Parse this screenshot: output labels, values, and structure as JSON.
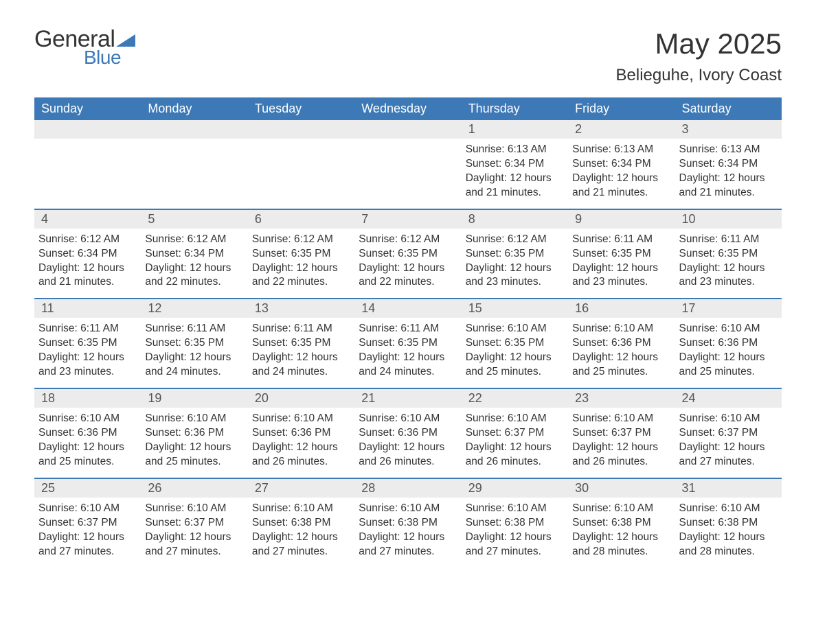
{
  "logo": {
    "text1": "General",
    "text2": "Blue"
  },
  "title": "May 2025",
  "location": "Belieguhe, Ivory Coast",
  "colors": {
    "header_bg": "#3d78b7",
    "header_text": "#ffffff",
    "daynum_bg": "#ececec",
    "daynum_text": "#555555",
    "body_text": "#333333",
    "page_bg": "#ffffff",
    "rule": "#3d78b7",
    "logo_blue": "#3d78b7"
  },
  "fonts": {
    "title_size_pt": 42,
    "location_size_pt": 24,
    "dow_size_pt": 18,
    "daynum_size_pt": 18,
    "body_size_pt": 15.5,
    "family": "Arial"
  },
  "daysOfWeek": [
    "Sunday",
    "Monday",
    "Tuesday",
    "Wednesday",
    "Thursday",
    "Friday",
    "Saturday"
  ],
  "weeks": [
    [
      {
        "n": "",
        "sr": "",
        "ss": "",
        "dl": ""
      },
      {
        "n": "",
        "sr": "",
        "ss": "",
        "dl": ""
      },
      {
        "n": "",
        "sr": "",
        "ss": "",
        "dl": ""
      },
      {
        "n": "",
        "sr": "",
        "ss": "",
        "dl": ""
      },
      {
        "n": "1",
        "sr": "Sunrise: 6:13 AM",
        "ss": "Sunset: 6:34 PM",
        "dl": "Daylight: 12 hours and 21 minutes."
      },
      {
        "n": "2",
        "sr": "Sunrise: 6:13 AM",
        "ss": "Sunset: 6:34 PM",
        "dl": "Daylight: 12 hours and 21 minutes."
      },
      {
        "n": "3",
        "sr": "Sunrise: 6:13 AM",
        "ss": "Sunset: 6:34 PM",
        "dl": "Daylight: 12 hours and 21 minutes."
      }
    ],
    [
      {
        "n": "4",
        "sr": "Sunrise: 6:12 AM",
        "ss": "Sunset: 6:34 PM",
        "dl": "Daylight: 12 hours and 21 minutes."
      },
      {
        "n": "5",
        "sr": "Sunrise: 6:12 AM",
        "ss": "Sunset: 6:34 PM",
        "dl": "Daylight: 12 hours and 22 minutes."
      },
      {
        "n": "6",
        "sr": "Sunrise: 6:12 AM",
        "ss": "Sunset: 6:35 PM",
        "dl": "Daylight: 12 hours and 22 minutes."
      },
      {
        "n": "7",
        "sr": "Sunrise: 6:12 AM",
        "ss": "Sunset: 6:35 PM",
        "dl": "Daylight: 12 hours and 22 minutes."
      },
      {
        "n": "8",
        "sr": "Sunrise: 6:12 AM",
        "ss": "Sunset: 6:35 PM",
        "dl": "Daylight: 12 hours and 23 minutes."
      },
      {
        "n": "9",
        "sr": "Sunrise: 6:11 AM",
        "ss": "Sunset: 6:35 PM",
        "dl": "Daylight: 12 hours and 23 minutes."
      },
      {
        "n": "10",
        "sr": "Sunrise: 6:11 AM",
        "ss": "Sunset: 6:35 PM",
        "dl": "Daylight: 12 hours and 23 minutes."
      }
    ],
    [
      {
        "n": "11",
        "sr": "Sunrise: 6:11 AM",
        "ss": "Sunset: 6:35 PM",
        "dl": "Daylight: 12 hours and 23 minutes."
      },
      {
        "n": "12",
        "sr": "Sunrise: 6:11 AM",
        "ss": "Sunset: 6:35 PM",
        "dl": "Daylight: 12 hours and 24 minutes."
      },
      {
        "n": "13",
        "sr": "Sunrise: 6:11 AM",
        "ss": "Sunset: 6:35 PM",
        "dl": "Daylight: 12 hours and 24 minutes."
      },
      {
        "n": "14",
        "sr": "Sunrise: 6:11 AM",
        "ss": "Sunset: 6:35 PM",
        "dl": "Daylight: 12 hours and 24 minutes."
      },
      {
        "n": "15",
        "sr": "Sunrise: 6:10 AM",
        "ss": "Sunset: 6:35 PM",
        "dl": "Daylight: 12 hours and 25 minutes."
      },
      {
        "n": "16",
        "sr": "Sunrise: 6:10 AM",
        "ss": "Sunset: 6:36 PM",
        "dl": "Daylight: 12 hours and 25 minutes."
      },
      {
        "n": "17",
        "sr": "Sunrise: 6:10 AM",
        "ss": "Sunset: 6:36 PM",
        "dl": "Daylight: 12 hours and 25 minutes."
      }
    ],
    [
      {
        "n": "18",
        "sr": "Sunrise: 6:10 AM",
        "ss": "Sunset: 6:36 PM",
        "dl": "Daylight: 12 hours and 25 minutes."
      },
      {
        "n": "19",
        "sr": "Sunrise: 6:10 AM",
        "ss": "Sunset: 6:36 PM",
        "dl": "Daylight: 12 hours and 25 minutes."
      },
      {
        "n": "20",
        "sr": "Sunrise: 6:10 AM",
        "ss": "Sunset: 6:36 PM",
        "dl": "Daylight: 12 hours and 26 minutes."
      },
      {
        "n": "21",
        "sr": "Sunrise: 6:10 AM",
        "ss": "Sunset: 6:36 PM",
        "dl": "Daylight: 12 hours and 26 minutes."
      },
      {
        "n": "22",
        "sr": "Sunrise: 6:10 AM",
        "ss": "Sunset: 6:37 PM",
        "dl": "Daylight: 12 hours and 26 minutes."
      },
      {
        "n": "23",
        "sr": "Sunrise: 6:10 AM",
        "ss": "Sunset: 6:37 PM",
        "dl": "Daylight: 12 hours and 26 minutes."
      },
      {
        "n": "24",
        "sr": "Sunrise: 6:10 AM",
        "ss": "Sunset: 6:37 PM",
        "dl": "Daylight: 12 hours and 27 minutes."
      }
    ],
    [
      {
        "n": "25",
        "sr": "Sunrise: 6:10 AM",
        "ss": "Sunset: 6:37 PM",
        "dl": "Daylight: 12 hours and 27 minutes."
      },
      {
        "n": "26",
        "sr": "Sunrise: 6:10 AM",
        "ss": "Sunset: 6:37 PM",
        "dl": "Daylight: 12 hours and 27 minutes."
      },
      {
        "n": "27",
        "sr": "Sunrise: 6:10 AM",
        "ss": "Sunset: 6:38 PM",
        "dl": "Daylight: 12 hours and 27 minutes."
      },
      {
        "n": "28",
        "sr": "Sunrise: 6:10 AM",
        "ss": "Sunset: 6:38 PM",
        "dl": "Daylight: 12 hours and 27 minutes."
      },
      {
        "n": "29",
        "sr": "Sunrise: 6:10 AM",
        "ss": "Sunset: 6:38 PM",
        "dl": "Daylight: 12 hours and 27 minutes."
      },
      {
        "n": "30",
        "sr": "Sunrise: 6:10 AM",
        "ss": "Sunset: 6:38 PM",
        "dl": "Daylight: 12 hours and 28 minutes."
      },
      {
        "n": "31",
        "sr": "Sunrise: 6:10 AM",
        "ss": "Sunset: 6:38 PM",
        "dl": "Daylight: 12 hours and 28 minutes."
      }
    ]
  ]
}
